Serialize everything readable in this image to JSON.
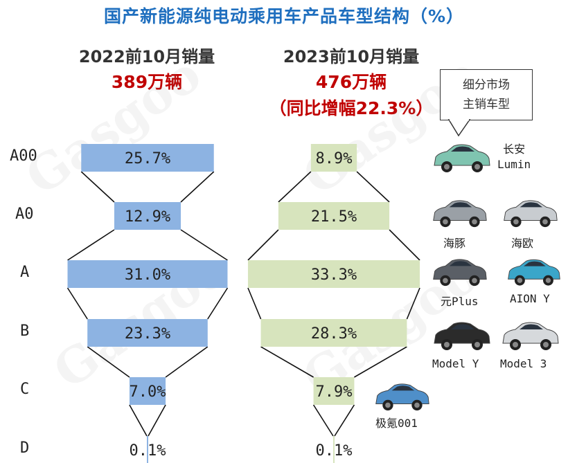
{
  "title": "国产新能源纯电动乘用车产品车型结构（%）",
  "panels": [
    {
      "label": "2022前10月销量",
      "total": "389万辆",
      "growth": ""
    },
    {
      "label": "2023前10月销量",
      "total": "476万辆",
      "growth": "（同比增幅22.3%）"
    }
  ],
  "callout": {
    "line1": "细分市场",
    "line2": "主销车型"
  },
  "watermark": "Gasgoo",
  "cars": [
    {
      "icon": "car-lumin-icon",
      "label": "长安\nLumin",
      "color": "#7fc4b0"
    },
    {
      "icon": "car-dolphin-icon",
      "label": "海豚",
      "color": "#9aa0a6"
    },
    {
      "icon": "car-seagull-icon",
      "label": "海欧",
      "color": "#c8ccd0"
    },
    {
      "icon": "car-yuanplus-icon",
      "label": "元Plus",
      "color": "#5a5f66"
    },
    {
      "icon": "car-aiony-icon",
      "label": "AION Y",
      "color": "#3aa6c9"
    },
    {
      "icon": "car-modely-icon",
      "label": "Model Y",
      "color": "#2b2b2b"
    },
    {
      "icon": "car-model3-icon",
      "label": "Model 3",
      "color": "#d6d9dc"
    },
    {
      "icon": "car-zeekr001-icon",
      "label": "极氪001",
      "color": "#4f8fc9"
    }
  ],
  "chart_data": [
    {
      "type": "bar",
      "title": "2022前10月销量",
      "categories": [
        "A00",
        "A0",
        "A",
        "B",
        "C",
        "D"
      ],
      "series": [
        {
          "name": "2022前10月销量",
          "values": [
            25.7,
            12.9,
            31.0,
            23.3,
            7.0,
            0.1
          ]
        }
      ],
      "value_labels": [
        "25.7%",
        "12.9%",
        "31.0%",
        "23.3%",
        "7.0%",
        "0.1%"
      ],
      "bar_color": "#8db3e2",
      "layout": "centered-funnel",
      "xlabel": "",
      "ylabel": ""
    },
    {
      "type": "bar",
      "title": "2023前10月销量",
      "categories": [
        "A00",
        "A0",
        "A",
        "B",
        "C",
        "D"
      ],
      "series": [
        {
          "name": "2023前10月销量",
          "values": [
            8.9,
            21.5,
            33.3,
            28.3,
            7.9,
            0.1
          ]
        }
      ],
      "value_labels": [
        "8.9%",
        "21.5%",
        "33.3%",
        "28.3%",
        "7.9%",
        "0.1%"
      ],
      "bar_color": "#d7e4bd",
      "layout": "centered-funnel",
      "xlabel": "",
      "ylabel": ""
    }
  ]
}
